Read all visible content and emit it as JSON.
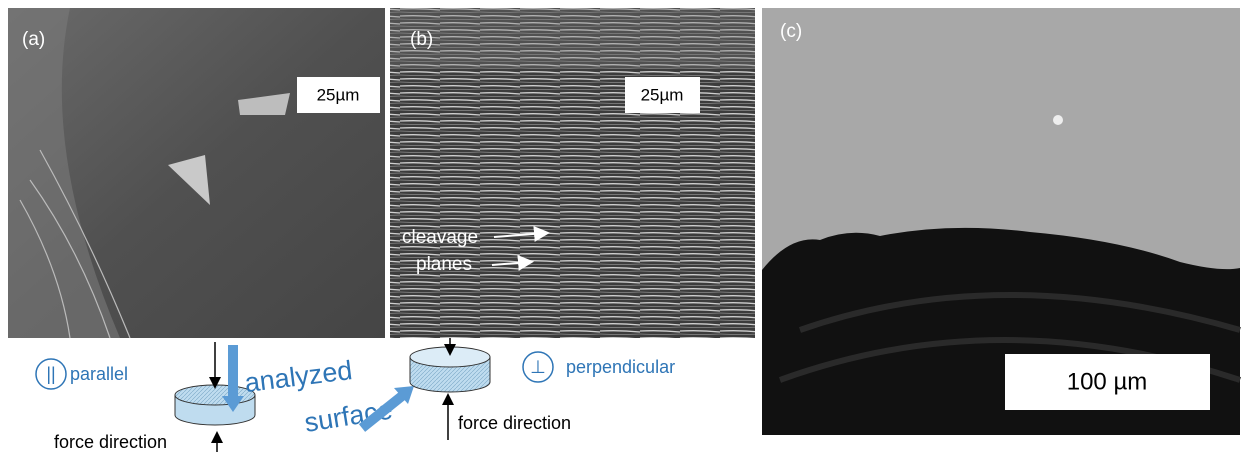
{
  "panels": [
    {
      "label": "(a)",
      "scale_bar": "25µm"
    },
    {
      "label": "(b)",
      "scale_bar": "25µm",
      "annotations": [
        "cleavage",
        "planes"
      ]
    },
    {
      "label": "(c)",
      "scale_bar": "100 µm"
    }
  ],
  "schematic": {
    "parallel": {
      "symbol": "||",
      "label": "parallel",
      "force": "force direction"
    },
    "analyzed_surface": [
      "analyzed",
      "surface"
    ],
    "perpendicular": {
      "symbol": "⊥",
      "label": "perpendicular",
      "force": "force direction"
    }
  }
}
